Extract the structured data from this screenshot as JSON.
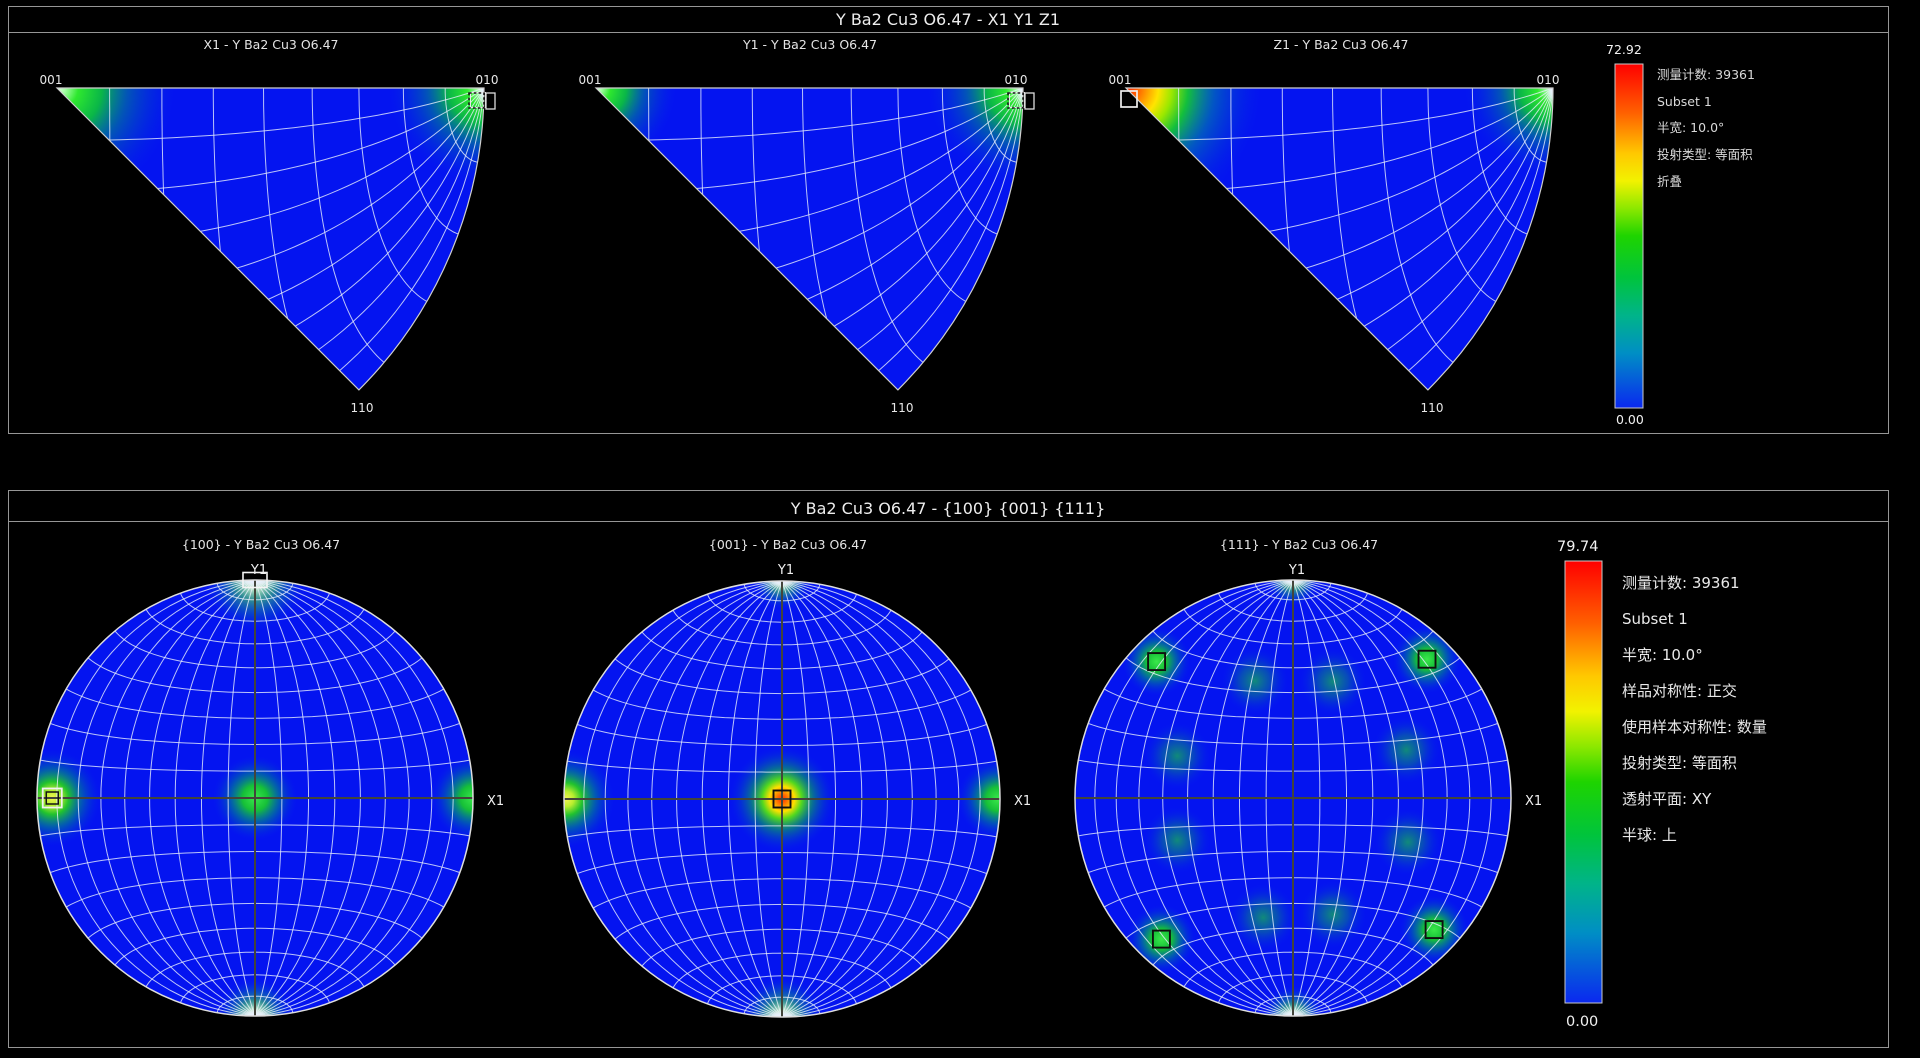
{
  "top_panel": {
    "title": "Y Ba2 Cu3 O6.47 - X1 Y1 Z1",
    "plots": [
      {
        "subtitle": "X1 - Y Ba2 Cu3 O6.47",
        "corner_top_left": "001",
        "corner_top_right": "010",
        "corner_bottom": "110"
      },
      {
        "subtitle": "Y1 - Y Ba2 Cu3 O6.47",
        "corner_top_left": "001",
        "corner_top_right": "010",
        "corner_bottom": "110"
      },
      {
        "subtitle": "Z1 - Y Ba2 Cu3 O6.47",
        "corner_top_left": "001",
        "corner_top_right": "010",
        "corner_bottom": "110"
      }
    ],
    "legend": {
      "max": "72.92",
      "min": "0.00",
      "lines": [
        "测量计数: 39361",
        "Subset 1",
        "半宽: 10.0°",
        "投射类型: 等面积",
        "折叠"
      ]
    }
  },
  "bottom_panel": {
    "title": "Y Ba2 Cu3 O6.47 - {100} {001} {111}",
    "plots": [
      {
        "subtitle": "{100} - Y Ba2 Cu3 O6.47",
        "axis_top": "Y1",
        "axis_right": "X1"
      },
      {
        "subtitle": "{001} - Y Ba2 Cu3 O6.47",
        "axis_top": "Y1",
        "axis_right": "X1"
      },
      {
        "subtitle": "{111} - Y Ba2 Cu3 O6.47",
        "axis_top": "Y1",
        "axis_right": "X1"
      }
    ],
    "legend": {
      "max": "79.74",
      "min": "0.00",
      "lines": [
        "测量计数: 39361",
        "Subset 1",
        "半宽: 10.0°",
        "样品对称性: 正交",
        "使用样本对称性: 数量",
        "投射类型: 等面积",
        "透射平面: XY",
        "半球: 上"
      ]
    }
  },
  "chart_data": [
    {
      "id": "ipf-x1",
      "type": "heatmap",
      "projection": "inverse_pole_figure",
      "title": "X1 - Y Ba2 Cu3 O6.47",
      "corners": [
        "001",
        "010",
        "110"
      ],
      "wedge_angle_deg": 45,
      "grid_step_deg": 10,
      "scale": {
        "min": 0.0,
        "max": 72.92
      },
      "hotspots": [
        {
          "corner": "001",
          "kind": "green-corner",
          "size": 118
        },
        {
          "corner": "010",
          "kind": "green-corner",
          "size": 95,
          "marker": "dashed"
        }
      ]
    },
    {
      "id": "ipf-y1",
      "type": "heatmap",
      "projection": "inverse_pole_figure",
      "title": "Y1 - Y Ba2 Cu3 O6.47",
      "corners": [
        "001",
        "010",
        "110"
      ],
      "wedge_angle_deg": 45,
      "grid_step_deg": 10,
      "scale": {
        "min": 0.0,
        "max": 72.92
      },
      "hotspots": [
        {
          "corner": "001",
          "kind": "green-corner",
          "size": 80
        },
        {
          "corner": "010",
          "kind": "green-corner",
          "size": 95,
          "marker": "dashed"
        }
      ]
    },
    {
      "id": "ipf-z1",
      "type": "heatmap",
      "projection": "inverse_pole_figure",
      "title": "Z1 - Y Ba2 Cu3 O6.47",
      "corners": [
        "001",
        "010",
        "110"
      ],
      "wedge_angle_deg": 45,
      "grid_step_deg": 10,
      "scale": {
        "min": 0.0,
        "max": 72.92
      },
      "hotspots": [
        {
          "corner": "001",
          "kind": "red-corner",
          "size": 135,
          "marker": "white"
        },
        {
          "corner": "010",
          "kind": "green-corner",
          "size": 88
        }
      ]
    },
    {
      "id": "pf-100",
      "type": "heatmap",
      "projection": "pole_figure",
      "title": "{100} - Y Ba2 Cu3 O6.47",
      "axes": {
        "top": "Y1",
        "right": "X1"
      },
      "grid_step_deg": 10,
      "scale": {
        "min": 0.0,
        "max": 79.74
      },
      "hotspots": [
        {
          "r": 1.0,
          "theta": 90,
          "kind": "pole",
          "size": 50,
          "marker": "white-wide"
        },
        {
          "r": 1.0,
          "theta": 270,
          "kind": "pole",
          "size": 38
        },
        {
          "r": 0.93,
          "theta": 180,
          "kind": "yellow",
          "size": 48,
          "marker": "double"
        },
        {
          "r": 1.0,
          "theta": 0,
          "kind": "green",
          "size": 42
        },
        {
          "r": 0.0,
          "theta": 0,
          "kind": "green",
          "size": 42
        }
      ]
    },
    {
      "id": "pf-001",
      "type": "heatmap",
      "projection": "pole_figure",
      "title": "{001} - Y Ba2 Cu3 O6.47",
      "axes": {
        "top": "Y1",
        "right": "X1"
      },
      "grid_step_deg": 10,
      "scale": {
        "min": 0.0,
        "max": 79.74
      },
      "hotspots": [
        {
          "r": 0.0,
          "theta": 0,
          "kind": "red-center",
          "size": 52,
          "marker": "black"
        },
        {
          "r": 0.99,
          "theta": 180,
          "kind": "yellow",
          "size": 48
        },
        {
          "r": 0.99,
          "theta": 0,
          "kind": "green",
          "size": 40
        },
        {
          "r": 1.0,
          "theta": 90,
          "kind": "pole",
          "size": 28
        },
        {
          "r": 1.0,
          "theta": 270,
          "kind": "pole",
          "size": 40
        }
      ]
    },
    {
      "id": "pf-111",
      "type": "heatmap",
      "projection": "pole_figure",
      "title": "{111} - Y Ba2 Cu3 O6.47",
      "axes": {
        "top": "Y1",
        "right": "X1"
      },
      "grid_step_deg": 10,
      "scale": {
        "min": 0.0,
        "max": 79.74
      },
      "hotspots": [
        {
          "r": 0.885,
          "theta": 46,
          "kind": "green",
          "size": 34,
          "marker": "black"
        },
        {
          "r": 0.885,
          "theta": 135,
          "kind": "green",
          "size": 34,
          "marker": "black"
        },
        {
          "r": 0.885,
          "theta": 227,
          "kind": "green",
          "size": 34,
          "marker": "black"
        },
        {
          "r": 0.885,
          "theta": 317,
          "kind": "green",
          "size": 34,
          "marker": "black"
        },
        {
          "r": 0.565,
          "theta": 23,
          "kind": "soft",
          "size": 33
        },
        {
          "r": 0.565,
          "theta": 71,
          "kind": "soft",
          "size": 33
        },
        {
          "r": 0.565,
          "theta": 108,
          "kind": "soft",
          "size": 33
        },
        {
          "r": 0.565,
          "theta": 160,
          "kind": "soft",
          "size": 33
        },
        {
          "r": 0.565,
          "theta": 200,
          "kind": "soft",
          "size": 33
        },
        {
          "r": 0.565,
          "theta": 256,
          "kind": "soft",
          "size": 33
        },
        {
          "r": 0.565,
          "theta": 289,
          "kind": "soft",
          "size": 33
        },
        {
          "r": 0.565,
          "theta": 339,
          "kind": "soft",
          "size": 33
        },
        {
          "r": 1.0,
          "theta": 90,
          "kind": "pole",
          "size": 26
        },
        {
          "r": 1.0,
          "theta": 270,
          "kind": "pole",
          "size": 30
        }
      ]
    }
  ]
}
